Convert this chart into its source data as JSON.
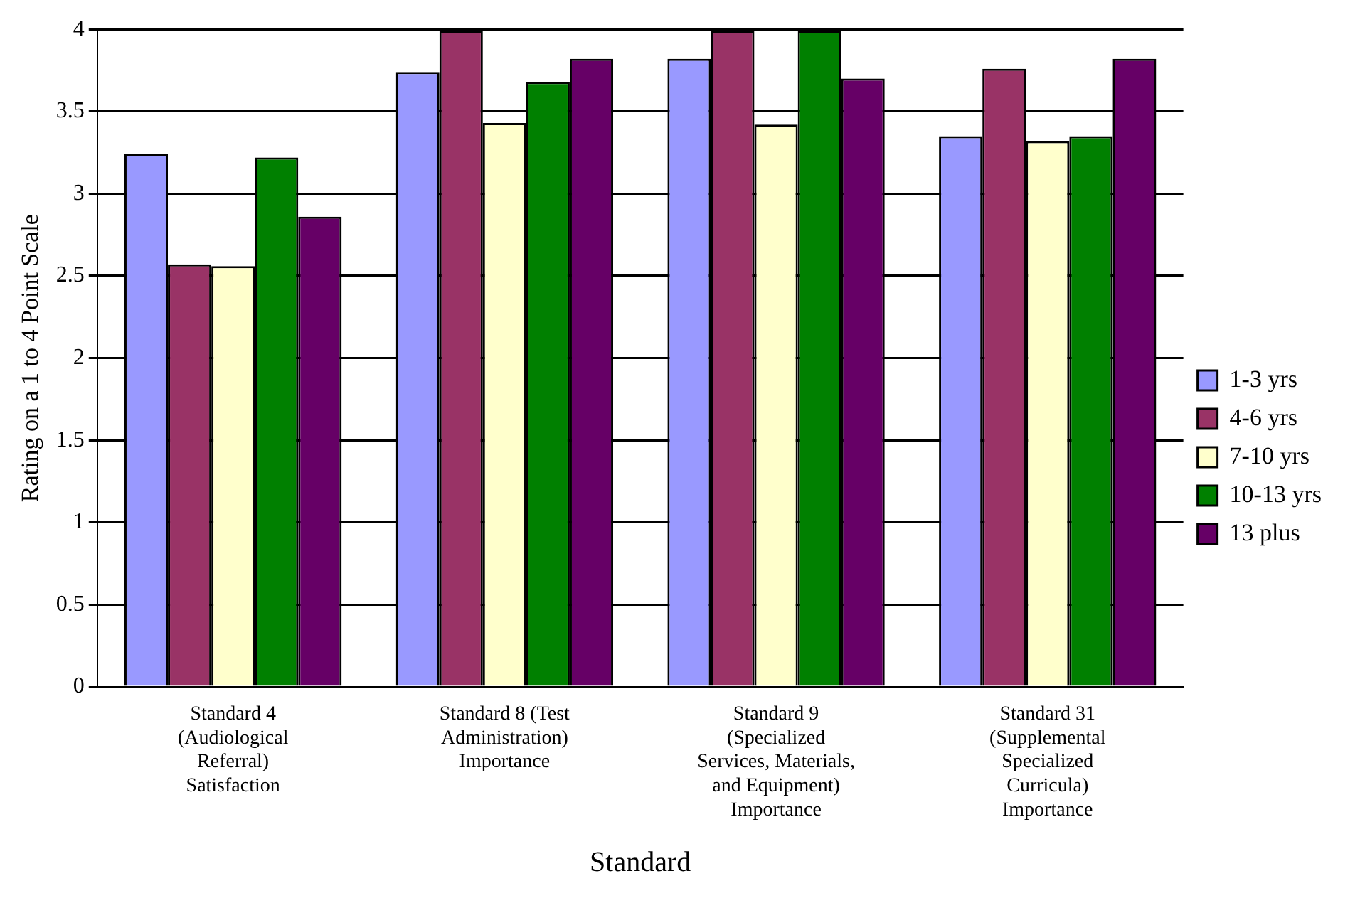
{
  "chart_data": {
    "type": "bar",
    "xlabel": "Standard",
    "ylabel": "Rating on a 1 to 4 Point Scale",
    "categories": [
      "Standard 4 (Audiological Referral) Satisfaction",
      "Standard 8 (Test Administration) Importance",
      "Standard 9 (Specialized Services, Materials, and Equipment) Importance",
      "Standard 31 (Supplemental Specialized Curricula) Importance"
    ],
    "series": [
      {
        "name": "1-3 yrs",
        "color": "#9999ff",
        "values": [
          3.24,
          3.74,
          3.82,
          3.35
        ]
      },
      {
        "name": "4-6 yrs",
        "color": "#993366",
        "values": [
          2.57,
          3.99,
          3.99,
          3.76
        ]
      },
      {
        "name": "7-10 yrs",
        "color": "#ffffcc",
        "values": [
          2.56,
          3.43,
          3.42,
          3.32
        ]
      },
      {
        "name": "10-13 yrs",
        "color": "#008000",
        "values": [
          3.22,
          3.68,
          3.99,
          3.35
        ]
      },
      {
        "name": "13 plus",
        "color": "#660066",
        "values": [
          2.86,
          3.82,
          3.7,
          3.82
        ]
      }
    ],
    "ylim": [
      0,
      4
    ],
    "yticks": [
      0,
      0.5,
      1,
      1.5,
      2,
      2.5,
      3,
      3.5,
      4
    ],
    "grid": "y",
    "legend": "right"
  }
}
